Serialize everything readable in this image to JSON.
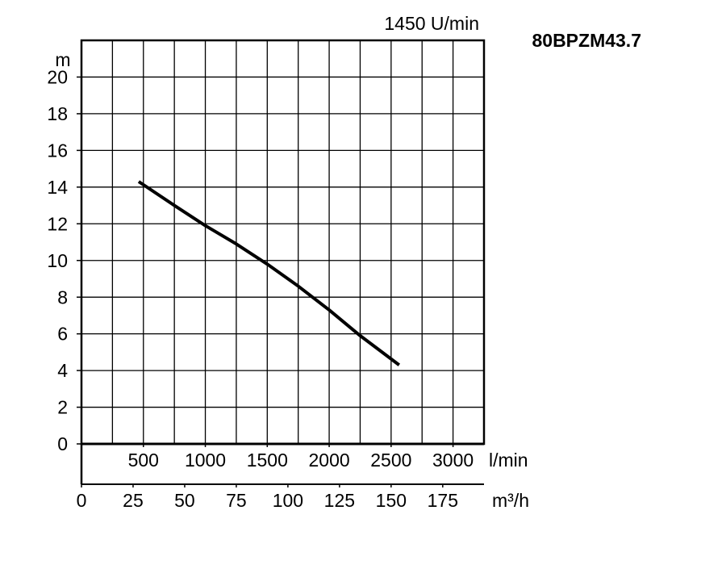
{
  "chart_data": {
    "type": "line",
    "title": "80BPZM43.7",
    "subtitle": "1450 U/min",
    "x_label": "l/min",
    "x2_label": "m³/h",
    "y_label": "m",
    "x": [
      462,
      750,
      1000,
      1250,
      1500,
      1750,
      2000,
      2250,
      2565
    ],
    "series": [
      {
        "color": "#000000",
        "values": [
          14.3,
          13.0,
          11.9,
          10.9,
          9.8,
          8.6,
          7.3,
          5.9,
          4.3
        ]
      }
    ],
    "xlim": [
      0,
      3250
    ],
    "xticks": [
      500,
      1000,
      1500,
      2000,
      2500,
      3000
    ],
    "xgrid": [
      0,
      250,
      500,
      750,
      1000,
      1250,
      1500,
      1750,
      2000,
      2250,
      2500,
      2750,
      3000,
      3250
    ],
    "x2lim": [
      0,
      195
    ],
    "x2ticks": [
      0,
      25,
      50,
      75,
      100,
      125,
      150,
      175
    ],
    "ylim": [
      0,
      22
    ],
    "yticks": [
      0,
      2,
      4,
      6,
      8,
      10,
      12,
      14,
      16,
      18,
      20
    ],
    "ygrid": [
      0,
      2,
      4,
      6,
      8,
      10,
      12,
      14,
      16,
      18,
      20,
      22
    ],
    "grid": true
  }
}
